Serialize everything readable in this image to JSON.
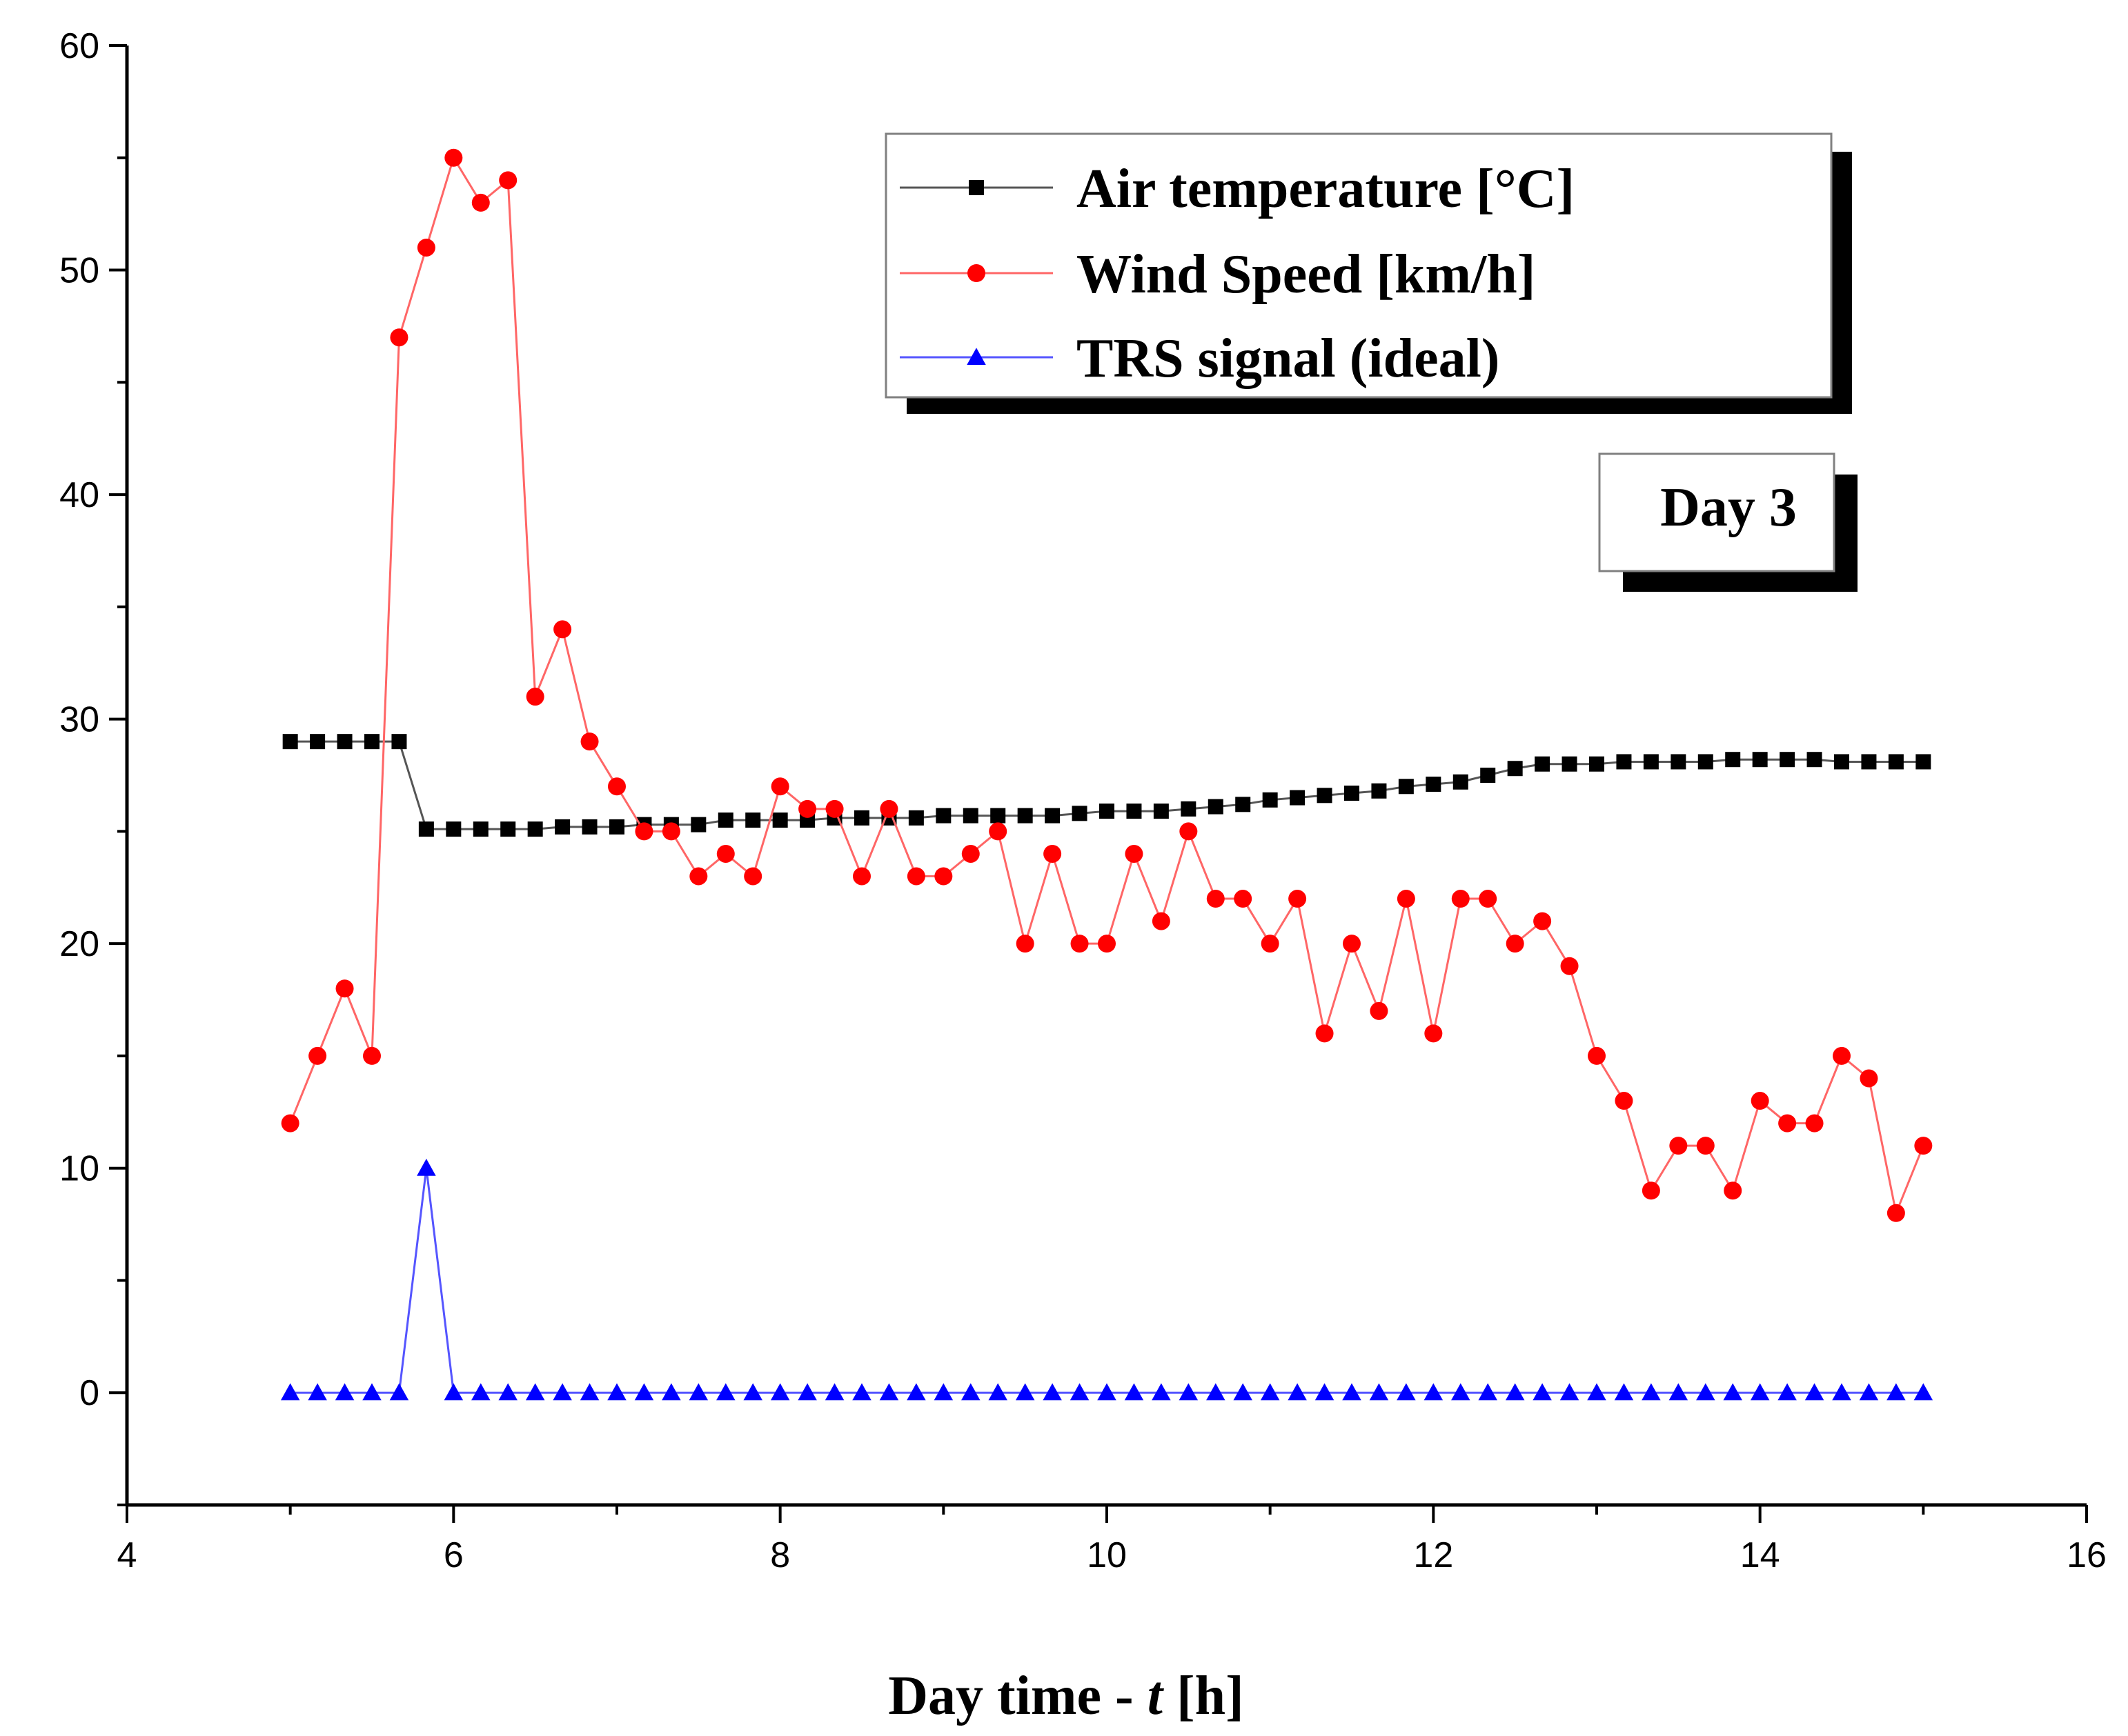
{
  "chart_data": {
    "type": "line",
    "title": "",
    "xlabel_main": "Day time - ",
    "xlabel_var": "t",
    "xlabel_unit": " [h]",
    "ylabel": "",
    "xlim": [
      4,
      16
    ],
    "ylim": [
      -5,
      60
    ],
    "x_ticks": [
      4,
      6,
      8,
      10,
      12,
      14,
      16
    ],
    "y_ticks": [
      0,
      10,
      20,
      30,
      40,
      50,
      60
    ],
    "annotation": "Day 3",
    "legend_position": "top-right",
    "x": [
      5.0,
      5.1667,
      5.3333,
      5.5,
      5.6667,
      5.8333,
      6.0,
      6.1667,
      6.3333,
      6.5,
      6.6667,
      6.8333,
      7.0,
      7.1667,
      7.3333,
      7.5,
      7.6667,
      7.8333,
      8.0,
      8.1667,
      8.3333,
      8.5,
      8.6667,
      8.8333,
      9.0,
      9.1667,
      9.3333,
      9.5,
      9.6667,
      9.8333,
      10.0,
      10.1667,
      10.3333,
      10.5,
      10.6667,
      10.8333,
      11.0,
      11.1667,
      11.3333,
      11.5,
      11.6667,
      11.8333,
      12.0,
      12.1667,
      12.3333,
      12.5,
      12.6667,
      12.8333,
      13.0,
      13.1667,
      13.3333,
      13.5,
      13.6667,
      13.8333,
      14.0,
      14.1667,
      14.3333,
      14.5,
      14.6667,
      14.8333,
      15.0
    ],
    "series": [
      {
        "name": "Air temperature [°C]",
        "color": "#000000",
        "line_color": "#555555",
        "marker": "square",
        "values": [
          29,
          29,
          29,
          29,
          29,
          25.1,
          25.1,
          25.1,
          25.1,
          25.1,
          25.2,
          25.2,
          25.2,
          25.3,
          25.3,
          25.3,
          25.5,
          25.5,
          25.5,
          25.5,
          25.6,
          25.6,
          25.6,
          25.6,
          25.7,
          25.7,
          25.7,
          25.7,
          25.7,
          25.8,
          25.9,
          25.9,
          25.9,
          26.0,
          26.1,
          26.2,
          26.4,
          26.5,
          26.6,
          26.7,
          26.8,
          27.0,
          27.1,
          27.2,
          27.5,
          27.8,
          28.0,
          28.0,
          28.0,
          28.1,
          28.1,
          28.1,
          28.1,
          28.2,
          28.2,
          28.2,
          28.2,
          28.1,
          28.1,
          28.1,
          28.1
        ]
      },
      {
        "name": "Wind Speed [km/h]",
        "color": "#ff0000",
        "line_color": "#ff6666",
        "marker": "circle",
        "values": [
          12,
          15,
          18,
          15,
          47,
          51,
          55,
          53,
          54,
          31,
          34,
          29,
          27,
          25,
          25,
          23,
          24,
          23,
          27,
          26,
          26,
          23,
          26,
          23,
          23,
          24,
          25,
          20,
          24,
          20,
          20,
          24,
          21,
          25,
          22,
          22,
          20,
          22,
          16,
          20,
          17,
          22,
          16,
          22,
          22,
          20,
          21,
          19,
          15,
          13,
          9,
          11,
          11,
          9,
          13,
          12,
          12,
          15,
          14,
          8,
          11
        ]
      },
      {
        "name": "TRS signal (ideal)",
        "color": "#0000ff",
        "line_color": "#5555ff",
        "marker": "triangle",
        "values": [
          0,
          0,
          0,
          0,
          0,
          10,
          0,
          0,
          0,
          0,
          0,
          0,
          0,
          0,
          0,
          0,
          0,
          0,
          0,
          0,
          0,
          0,
          0,
          0,
          0,
          0,
          0,
          0,
          0,
          0,
          0,
          0,
          0,
          0,
          0,
          0,
          0,
          0,
          0,
          0,
          0,
          0,
          0,
          0,
          0,
          0,
          0,
          0,
          0,
          0,
          0,
          0,
          0,
          0,
          0,
          0,
          0,
          0,
          0,
          0,
          0
        ]
      }
    ]
  }
}
